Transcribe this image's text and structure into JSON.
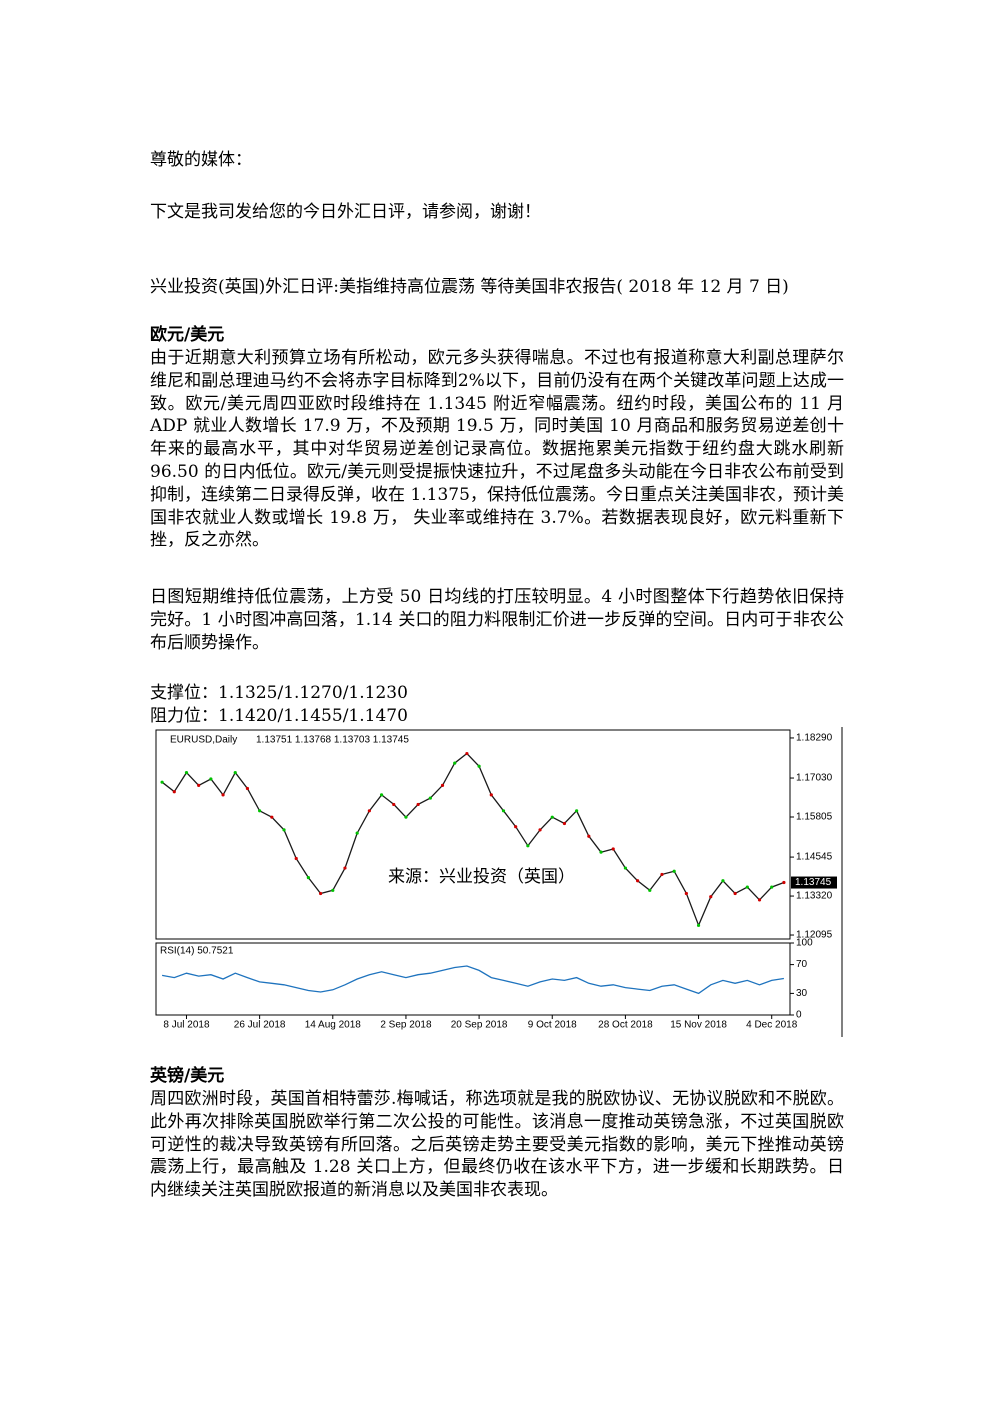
{
  "document": {
    "greeting": "尊敬的媒体：",
    "intro": "下文是我司发给您的今日外汇日评，请参阅，谢谢！",
    "title": "兴业投资(英国)外汇日评:美指维持高位震荡 等待美国非农报告( 2018 年 12 月 7 日)",
    "eur": {
      "heading": "欧元/美元",
      "paragraphs": [
        "由于近期意大利预算立场有所松动，欧元多头获得喘息。不过也有报道称意大利副总理萨尔维尼和副总理迪马约不会将赤字目标降到2%以下，目前仍没有在两个关键改革问题上达成一致。欧元/美元周四亚欧时段维持在 1.1345 附近窄幅震荡。纽约时段，美国公布的 11 月 ADP 就业人数增长 17.9 万，不及预期 19.5 万，同时美国 10 月商品和服务贸易逆差创十年来的最高水平，其中对华贸易逆差创记录高位。数据拖累美元指数于纽约盘大跳水刷新 96.50 的日内低位。欧元/美元则受提振快速拉升，不过尾盘多头动能在今日非农公布前受到抑制，连续第二日录得反弹，收在 1.1375，保持低位震荡。今日重点关注美国非农，预计美国非农就业人数或增长 19.8 万， 失业率或维持在 3.7%。若数据表现良好，欧元料重新下挫，反之亦然。",
        "日图短期维持低位震荡，上方受 50 日均线的打压较明显。4 小时图整体下行趋势依旧保持完好。1 小时图冲高回落，1.14 关口的阻力料限制汇价进一步反弹的空间。日内可于非农公布后顺势操作。"
      ],
      "support": "支撑位：1.1325/1.1270/1.1230",
      "resistance": "阻力位：1.1420/1.1455/1.1470"
    },
    "gbp": {
      "heading": "英镑/美元",
      "paragraph": "周四欧洲时段，英国首相特蕾莎.梅喊话，称选项就是我的脱欧协议、无协议脱欧和不脱欧。此外再次排除英国脱欧举行第二次公投的可能性。该消息一度推动英镑急涨，不过英国脱欧可逆性的裁决导致英镑有所回落。之后英镑走势主要受美元指数的影响，美元下挫推动英镑震荡上行，最高触及 1.28 关口上方，但最终仍收在该水平下方，进一步缓和长期跌势。日内继续关注英国脱欧报道的新消息以及美国非农表现。"
    }
  },
  "chart_data": {
    "type": "line",
    "title": "EURUSD,Daily",
    "subtitle": "1.13751 1.13768 1.13703 1.13745",
    "annotation": "来源：兴业投资（英国）",
    "categories": [
      null,
      null,
      "8 Jul 2018",
      null,
      null,
      null,
      null,
      null,
      "26 Jul 2018",
      null,
      null,
      null,
      null,
      null,
      "14 Aug 2018",
      null,
      null,
      null,
      null,
      null,
      "2 Sep 2018",
      null,
      null,
      null,
      null,
      null,
      "20 Sep 2018",
      null,
      null,
      null,
      null,
      null,
      "9 Oct 2018",
      null,
      null,
      null,
      null,
      null,
      "28 Oct 2018",
      null,
      null,
      null,
      null,
      null,
      "15 Nov 2018",
      null,
      null,
      null,
      null,
      null,
      "4 Dec 2018",
      null
    ],
    "series": [
      {
        "name": "EURUSD",
        "color": "#1a1a1a",
        "values": [
          1.169,
          1.166,
          1.172,
          1.168,
          1.17,
          1.165,
          1.172,
          1.167,
          1.16,
          1.158,
          1.154,
          1.145,
          1.139,
          1.134,
          1.135,
          1.142,
          1.153,
          1.16,
          1.165,
          1.162,
          1.158,
          1.162,
          1.164,
          1.168,
          1.175,
          1.178,
          1.174,
          1.165,
          1.16,
          1.155,
          1.149,
          1.154,
          1.158,
          1.156,
          1.16,
          1.152,
          1.147,
          1.148,
          1.142,
          1.138,
          1.135,
          1.14,
          1.141,
          1.134,
          1.124,
          1.133,
          1.138,
          1.134,
          1.136,
          1.132,
          1.136,
          1.13745
        ]
      }
    ],
    "ylim": [
      1.1197,
      1.1854
    ],
    "yticks": [
      {
        "value": 1.1829,
        "label": "1.18290"
      },
      {
        "value": 1.1703,
        "label": "1.17030"
      },
      1.15805,
      1.14545,
      {
        "value": 1.1332,
        "label": "1.13320"
      },
      1.12095
    ],
    "last_price": {
      "value": 1.13745,
      "label": "1.13745"
    },
    "rsi": {
      "title": "RSI(14) 50.7521",
      "color": "#1e73be",
      "values": [
        55,
        52,
        58,
        54,
        56,
        50,
        58,
        52,
        46,
        44,
        42,
        38,
        34,
        32,
        35,
        42,
        50,
        56,
        60,
        56,
        52,
        56,
        58,
        62,
        66,
        68,
        62,
        52,
        48,
        44,
        40,
        46,
        50,
        48,
        52,
        44,
        40,
        42,
        38,
        36,
        34,
        40,
        42,
        36,
        30,
        42,
        48,
        44,
        48,
        42,
        48,
        50.7521
      ],
      "ylim": [
        0,
        100
      ],
      "yticks": [
        100,
        70,
        30,
        0
      ]
    }
  }
}
